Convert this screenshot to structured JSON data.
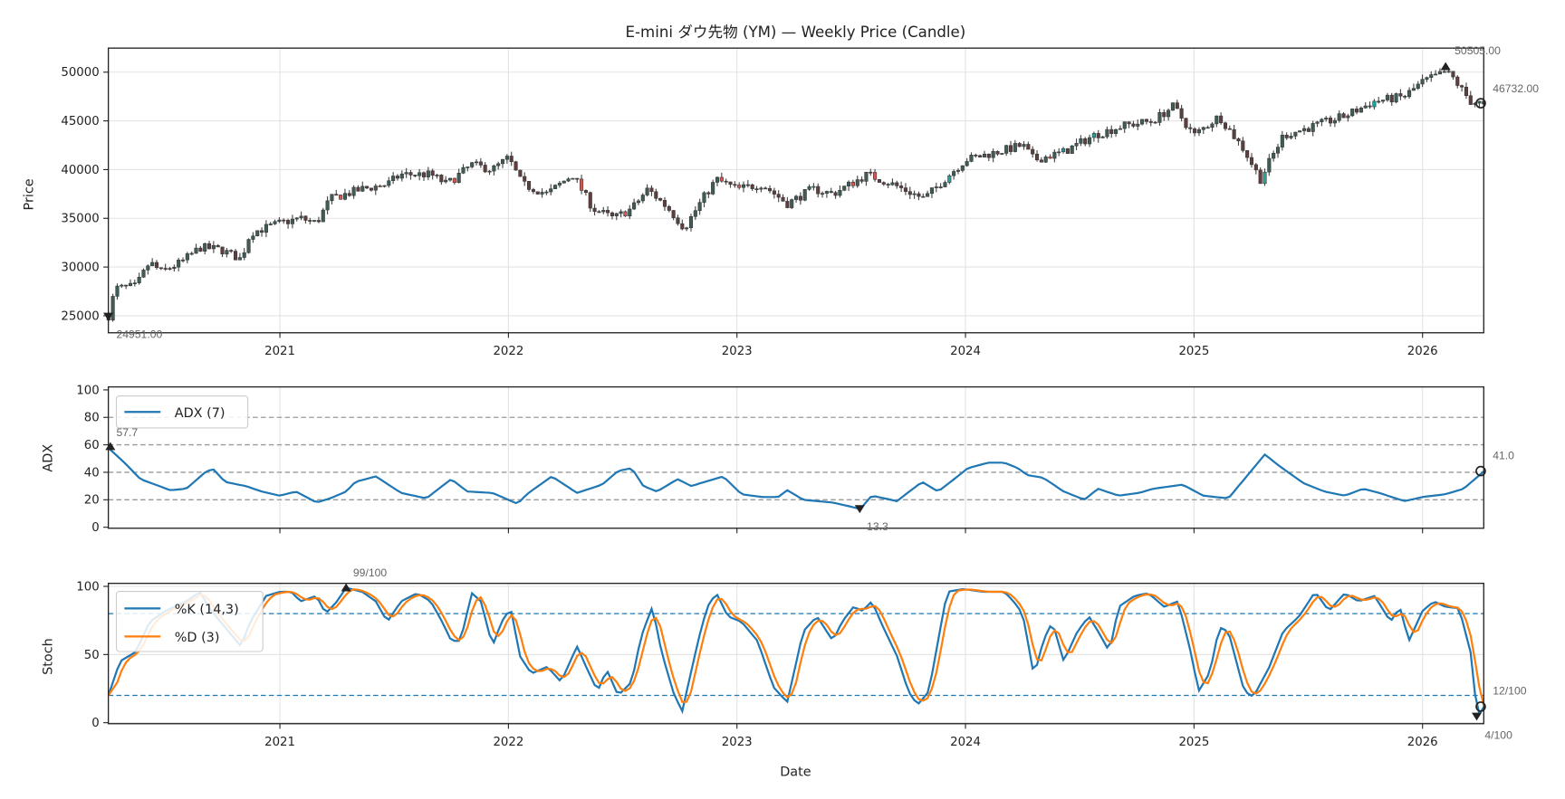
{
  "chart_data": [
    {
      "type": "candlestick",
      "title": "E-mini ダウ先物 (YM) — Weekly Price (Candle)",
      "ylabel": "Price",
      "xlabel": "",
      "ylim": [
        23250,
        52470
      ],
      "xlim": [
        2020.25,
        2026.27
      ],
      "yticks": [
        25000,
        30000,
        35000,
        40000,
        45000,
        50000
      ],
      "xticks": [
        {
          "v": 2021,
          "label": "2021"
        },
        {
          "v": 2022,
          "label": "2022"
        },
        {
          "v": 2023,
          "label": "2023"
        },
        {
          "v": 2024,
          "label": "2024"
        },
        {
          "v": 2025,
          "label": "2025"
        },
        {
          "v": 2026,
          "label": "2026"
        }
      ],
      "grid": true,
      "close_path": [
        [
          2020.25,
          25000
        ],
        [
          2020.28,
          27800
        ],
        [
          2020.37,
          28000
        ],
        [
          2020.43,
          30500
        ],
        [
          2020.48,
          29500
        ],
        [
          2020.57,
          30500
        ],
        [
          2020.65,
          32000
        ],
        [
          2020.74,
          31800
        ],
        [
          2020.83,
          30800
        ],
        [
          2020.87,
          33500
        ],
        [
          2021.0,
          34500
        ],
        [
          2021.09,
          35000
        ],
        [
          2021.16,
          34500
        ],
        [
          2021.22,
          37000
        ],
        [
          2021.36,
          38000
        ],
        [
          2021.47,
          38500
        ],
        [
          2021.53,
          39500
        ],
        [
          2021.66,
          39500
        ],
        [
          2021.73,
          38500
        ],
        [
          2021.84,
          40500
        ],
        [
          2021.93,
          40000
        ],
        [
          2022.0,
          41200
        ],
        [
          2022.06,
          38500
        ],
        [
          2022.17,
          37500
        ],
        [
          2022.28,
          39500
        ],
        [
          2022.37,
          36000
        ],
        [
          2022.46,
          35000
        ],
        [
          2022.54,
          36000
        ],
        [
          2022.61,
          38000
        ],
        [
          2022.7,
          36000
        ],
        [
          2022.77,
          34000
        ],
        [
          2022.85,
          37000
        ],
        [
          2022.91,
          39000
        ],
        [
          2023.0,
          38000
        ],
        [
          2023.11,
          38500
        ],
        [
          2023.22,
          36500
        ],
        [
          2023.33,
          38000
        ],
        [
          2023.42,
          37500
        ],
        [
          2023.57,
          39500
        ],
        [
          2023.68,
          38500
        ],
        [
          2023.82,
          37000
        ],
        [
          2023.93,
          39500
        ],
        [
          2024.0,
          41000
        ],
        [
          2024.17,
          42000
        ],
        [
          2024.25,
          42500
        ],
        [
          2024.3,
          41000
        ],
        [
          2024.43,
          41800
        ],
        [
          2024.56,
          43500
        ],
        [
          2024.69,
          44500
        ],
        [
          2024.82,
          45000
        ],
        [
          2024.91,
          46500
        ],
        [
          2025.0,
          43500
        ],
        [
          2025.11,
          45500
        ],
        [
          2025.22,
          42000
        ],
        [
          2025.29,
          39000
        ],
        [
          2025.39,
          43500
        ],
        [
          2025.53,
          44500
        ],
        [
          2025.66,
          45500
        ],
        [
          2025.79,
          47000
        ],
        [
          2025.92,
          47500
        ],
        [
          2026.0,
          49000
        ],
        [
          2026.1,
          50000
        ],
        [
          2026.13,
          49500
        ],
        [
          2026.21,
          47000
        ],
        [
          2026.27,
          46732
        ]
      ],
      "annotations": {
        "max": "50505.00",
        "min": "24951.00",
        "last": "46732.00"
      },
      "colors": {
        "up": "#3f5c57",
        "down": "#5e3f3f",
        "up_hi": "#1fa39a",
        "down_hi": "#d9534f"
      }
    },
    {
      "type": "line",
      "ylabel": "ADX",
      "ylim": [
        -1,
        102
      ],
      "yticks": [
        0,
        20,
        40,
        60,
        80,
        100
      ],
      "ref_lines": [
        20,
        40,
        60,
        80
      ],
      "legend": {
        "label": "ADX (7)",
        "position": "upper-left"
      },
      "color": "#1f77b4",
      "series": [
        [
          2020.25,
          57.7
        ],
        [
          2020.32,
          47
        ],
        [
          2020.39,
          35
        ],
        [
          2020.52,
          27
        ],
        [
          2020.59,
          28
        ],
        [
          2020.68,
          41
        ],
        [
          2020.71,
          42
        ],
        [
          2020.76,
          33
        ],
        [
          2020.85,
          30
        ],
        [
          2020.92,
          26
        ],
        [
          2021.0,
          23
        ],
        [
          2021.07,
          26
        ],
        [
          2021.16,
          18
        ],
        [
          2021.22,
          21
        ],
        [
          2021.29,
          26
        ],
        [
          2021.33,
          33
        ],
        [
          2021.42,
          37
        ],
        [
          2021.53,
          25
        ],
        [
          2021.64,
          21
        ],
        [
          2021.75,
          35
        ],
        [
          2021.82,
          26
        ],
        [
          2021.93,
          25
        ],
        [
          2022.04,
          17
        ],
        [
          2022.08,
          24
        ],
        [
          2022.19,
          37
        ],
        [
          2022.3,
          25
        ],
        [
          2022.41,
          31
        ],
        [
          2022.48,
          41
        ],
        [
          2022.54,
          43
        ],
        [
          2022.59,
          30
        ],
        [
          2022.65,
          26
        ],
        [
          2022.74,
          35
        ],
        [
          2022.8,
          30
        ],
        [
          2022.94,
          37
        ],
        [
          2023.02,
          24
        ],
        [
          2023.11,
          22
        ],
        [
          2023.18,
          22
        ],
        [
          2023.22,
          27
        ],
        [
          2023.29,
          20
        ],
        [
          2023.42,
          18
        ],
        [
          2023.54,
          13.3
        ],
        [
          2023.59,
          23
        ],
        [
          2023.7,
          19
        ],
        [
          2023.77,
          28
        ],
        [
          2023.81,
          33
        ],
        [
          2023.88,
          26
        ],
        [
          2023.95,
          35
        ],
        [
          2024.01,
          43
        ],
        [
          2024.1,
          47
        ],
        [
          2024.17,
          47
        ],
        [
          2024.23,
          43
        ],
        [
          2024.27,
          38
        ],
        [
          2024.34,
          36
        ],
        [
          2024.43,
          26
        ],
        [
          2024.52,
          20
        ],
        [
          2024.58,
          28
        ],
        [
          2024.67,
          23
        ],
        [
          2024.76,
          25
        ],
        [
          2024.82,
          28
        ],
        [
          2024.95,
          31
        ],
        [
          2025.04,
          23
        ],
        [
          2025.15,
          21
        ],
        [
          2025.22,
          35
        ],
        [
          2025.31,
          53
        ],
        [
          2025.37,
          45
        ],
        [
          2025.48,
          32
        ],
        [
          2025.57,
          26
        ],
        [
          2025.66,
          23
        ],
        [
          2025.74,
          28
        ],
        [
          2025.81,
          25
        ],
        [
          2025.92,
          19
        ],
        [
          2026.0,
          22
        ],
        [
          2026.1,
          24
        ],
        [
          2026.18,
          28
        ],
        [
          2026.27,
          41
        ]
      ],
      "annotations": {
        "max": "57.7",
        "min": "13.3",
        "last": "41.0"
      }
    },
    {
      "type": "line",
      "ylabel": "Stoch",
      "xlabel": "Date",
      "ylim": [
        -1,
        101
      ],
      "yticks": [
        0,
        50,
        100
      ],
      "ref_lines": [
        20,
        80
      ],
      "d_period": 3,
      "legend": {
        "k_label": "%K (14,3)",
        "d_label": "%D (3)",
        "position": "upper-left"
      },
      "colors": {
        "k": "#1f77b4",
        "d": "#ff7f0e"
      },
      "k_series": [
        [
          2020.25,
          20
        ],
        [
          2020.3,
          45
        ],
        [
          2020.37,
          52
        ],
        [
          2020.43,
          74
        ],
        [
          2020.5,
          82
        ],
        [
          2020.59,
          89
        ],
        [
          2020.65,
          96
        ],
        [
          2020.7,
          82
        ],
        [
          2020.76,
          70
        ],
        [
          2020.83,
          56
        ],
        [
          2020.87,
          74
        ],
        [
          2020.94,
          93
        ],
        [
          2021.0,
          96
        ],
        [
          2021.05,
          96
        ],
        [
          2021.09,
          89
        ],
        [
          2021.16,
          93
        ],
        [
          2021.2,
          80
        ],
        [
          2021.25,
          89
        ],
        [
          2021.29,
          99
        ],
        [
          2021.36,
          96
        ],
        [
          2021.42,
          89
        ],
        [
          2021.47,
          74
        ],
        [
          2021.53,
          89
        ],
        [
          2021.6,
          95
        ],
        [
          2021.66,
          89
        ],
        [
          2021.71,
          74
        ],
        [
          2021.75,
          60
        ],
        [
          2021.79,
          60
        ],
        [
          2021.84,
          95
        ],
        [
          2021.88,
          89
        ],
        [
          2021.93,
          56
        ],
        [
          2021.97,
          74
        ],
        [
          2022.01,
          84
        ],
        [
          2022.05,
          49
        ],
        [
          2022.1,
          36
        ],
        [
          2022.17,
          41
        ],
        [
          2022.23,
          30
        ],
        [
          2022.3,
          56
        ],
        [
          2022.34,
          41
        ],
        [
          2022.39,
          23
        ],
        [
          2022.43,
          39
        ],
        [
          2022.48,
          20
        ],
        [
          2022.54,
          30
        ],
        [
          2022.58,
          63
        ],
        [
          2022.63,
          85
        ],
        [
          2022.67,
          52
        ],
        [
          2022.72,
          23
        ],
        [
          2022.76,
          8
        ],
        [
          2022.83,
          60
        ],
        [
          2022.87,
          85
        ],
        [
          2022.91,
          95
        ],
        [
          2022.96,
          78
        ],
        [
          2023.02,
          74
        ],
        [
          2023.09,
          60
        ],
        [
          2023.16,
          26
        ],
        [
          2023.22,
          15
        ],
        [
          2023.29,
          67
        ],
        [
          2023.35,
          78
        ],
        [
          2023.42,
          60
        ],
        [
          2023.46,
          74
        ],
        [
          2023.51,
          85
        ],
        [
          2023.55,
          82
        ],
        [
          2023.59,
          89
        ],
        [
          2023.64,
          70
        ],
        [
          2023.7,
          49
        ],
        [
          2023.75,
          23
        ],
        [
          2023.79,
          13
        ],
        [
          2023.84,
          23
        ],
        [
          2023.88,
          60
        ],
        [
          2023.92,
          96
        ],
        [
          2023.99,
          98
        ],
        [
          2024.08,
          96
        ],
        [
          2024.17,
          96
        ],
        [
          2024.21,
          89
        ],
        [
          2024.25,
          80
        ],
        [
          2024.3,
          34
        ],
        [
          2024.34,
          60
        ],
        [
          2024.38,
          74
        ],
        [
          2024.43,
          45
        ],
        [
          2024.49,
          67
        ],
        [
          2024.54,
          78
        ],
        [
          2024.58,
          67
        ],
        [
          2024.63,
          52
        ],
        [
          2024.67,
          85
        ],
        [
          2024.74,
          93
        ],
        [
          2024.8,
          95
        ],
        [
          2024.87,
          85
        ],
        [
          2024.93,
          89
        ],
        [
          2024.98,
          56
        ],
        [
          2025.02,
          23
        ],
        [
          2025.07,
          37
        ],
        [
          2025.11,
          70
        ],
        [
          2025.15,
          67
        ],
        [
          2025.22,
          23
        ],
        [
          2025.26,
          19
        ],
        [
          2025.33,
          41
        ],
        [
          2025.39,
          67
        ],
        [
          2025.46,
          78
        ],
        [
          2025.53,
          96
        ],
        [
          2025.59,
          82
        ],
        [
          2025.66,
          95
        ],
        [
          2025.72,
          89
        ],
        [
          2025.79,
          93
        ],
        [
          2025.86,
          74
        ],
        [
          2025.9,
          85
        ],
        [
          2025.94,
          60
        ],
        [
          2026.0,
          82
        ],
        [
          2026.05,
          89
        ],
        [
          2026.1,
          85
        ],
        [
          2026.16,
          84
        ],
        [
          2026.21,
          52
        ],
        [
          2026.24,
          4
        ],
        [
          2026.27,
          12
        ]
      ],
      "annotations": {
        "max": "99/100",
        "min": "4/100",
        "last": "12/100"
      }
    }
  ]
}
